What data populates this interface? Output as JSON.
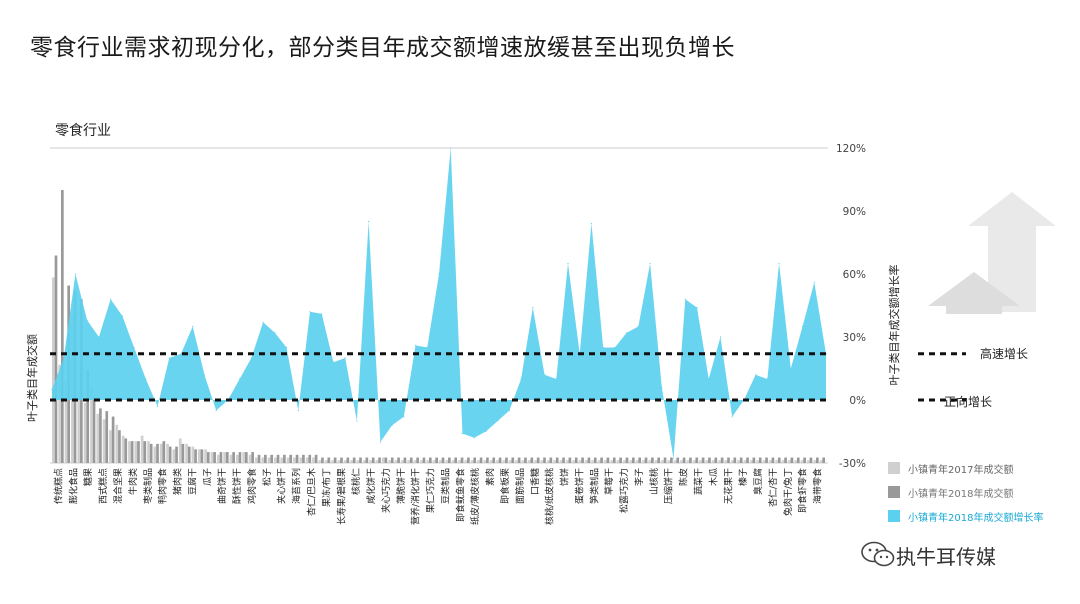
{
  "title": "零食行业需求初现分化，部分类目年成交额增速放缓甚至出现负增长",
  "watermark": "执牛耳传媒",
  "chart_data": {
    "type": "bar",
    "subtitle": "零食行业",
    "y_left_label": "叶子类目年成交额",
    "y_right_label": "叶子类目年成交额增长率",
    "y_right_ticks": [
      "120%",
      "90%",
      "60%",
      "30%",
      "0%",
      "-30%"
    ],
    "y_right_lim": [
      -30,
      120
    ],
    "reference_lines": [
      {
        "value": 22,
        "label": "高速增长"
      },
      {
        "value": 0,
        "label": "正向增长"
      }
    ],
    "legend": [
      {
        "name": "小镇青年2017年成交额",
        "color": "#d0d0d0"
      },
      {
        "name": "小镇青年2018年成交额",
        "color": "#999999"
      },
      {
        "name": "小镇青年2018年成交额增长率",
        "color": "#5cd0ef"
      }
    ],
    "colors": {
      "bar_2017": "#d0d0d0",
      "bar_2018": "#999999",
      "growth": "#5cd0ef"
    },
    "labeled_categories": [
      "传统糕点",
      "膨化食品",
      "糖果",
      "西式糕点",
      "混合坚果",
      "牛肉类",
      "枣类制品",
      "鸭肉零食",
      "猪肉类",
      "豆腐干",
      "瓜子",
      "曲奇饼干",
      "酥性饼干",
      "鸡肉零食",
      "松子",
      "夹心饼干",
      "海苔系列",
      "杏仁/巴旦木",
      "果冻/布丁",
      "长寿果/碧根果",
      "核桃仁",
      "咸化饼干",
      "夹心巧克力",
      "薄脆饼干",
      "营养/消化饼干",
      "果仁巧克力",
      "豆类制品",
      "即食鱿鱼零食",
      "纸皮/薄皮核桃",
      "素肉",
      "即食板栗",
      "面筋制品",
      "口香糖",
      "核桃/纸皮核桃",
      "饼饼",
      "蛋卷饼干",
      "笋类制品",
      "草莓干",
      "松露巧克力",
      "李子",
      "山核桃",
      "压缩饼干",
      "陈皮",
      "蔬菜干",
      "木瓜",
      "无花果干",
      "榛子",
      "臭豆腐",
      "杏仁/杏干",
      "兔肉干/兔丁",
      "即食虾零食",
      "海带零食"
    ],
    "series": [
      {
        "name": "小镇青年2017年成交额",
        "values": [
          68,
          36,
          30,
          54,
          26,
          22,
          28,
          18,
          16,
          12,
          14,
          10,
          8,
          8,
          10,
          8,
          6,
          7,
          7,
          5,
          9,
          7,
          6,
          5,
          5,
          4,
          3,
          4,
          3,
          3,
          4,
          3,
          2,
          2,
          2,
          2,
          2,
          2,
          2,
          2,
          2,
          2,
          1,
          1,
          1,
          1,
          1,
          1,
          1,
          1,
          1,
          1,
          2,
          1,
          1,
          1,
          1,
          1,
          1,
          1,
          1,
          1,
          1,
          1,
          1,
          1,
          1,
          1,
          1,
          1,
          1,
          1,
          1,
          1,
          1,
          1,
          1,
          1,
          1,
          1,
          1,
          1,
          1,
          1,
          1,
          1,
          1,
          1,
          1,
          1,
          1,
          1,
          1,
          1,
          1,
          1,
          1,
          1,
          1,
          1,
          1,
          1,
          1,
          1,
          1,
          1,
          1,
          1,
          1,
          1,
          1,
          1,
          1,
          1,
          1,
          1,
          1,
          1,
          1,
          1,
          1,
          1
        ]
      },
      {
        "name": "小镇青年2018年成交额",
        "values": [
          76,
          100,
          65,
          63,
          60,
          34,
          24,
          20,
          19,
          17,
          12,
          9,
          8,
          8,
          8,
          7,
          7,
          8,
          6,
          6,
          7,
          6,
          5,
          5,
          4,
          4,
          4,
          4,
          4,
          4,
          4,
          4,
          3,
          3,
          3,
          3,
          3,
          3,
          3,
          3,
          3,
          3,
          2,
          2,
          2,
          2,
          2,
          2,
          2,
          2,
          2,
          2,
          2,
          2,
          2,
          2,
          2,
          2,
          2,
          2,
          2,
          2,
          2,
          2,
          2,
          2,
          2,
          2,
          2,
          2,
          2,
          2,
          2,
          2,
          2,
          2,
          2,
          2,
          2,
          2,
          2,
          2,
          2,
          2,
          2,
          2,
          2,
          2,
          2,
          2,
          2,
          2,
          2,
          2,
          2,
          2,
          2,
          2,
          2,
          2,
          2,
          2,
          2,
          2,
          2,
          2,
          2,
          2,
          2,
          2,
          2,
          2,
          2,
          2,
          2,
          2,
          2,
          2,
          2,
          2,
          2,
          2
        ]
      },
      {
        "name": "小镇青年2018年成交额增长率",
        "values": [
          5,
          20,
          60,
          38,
          30,
          48,
          40,
          25,
          10,
          -3,
          20,
          22,
          35,
          12,
          -5,
          0,
          10,
          20,
          37,
          32,
          25,
          -5,
          42,
          41,
          18,
          20,
          -10,
          85,
          -20,
          -12,
          -8,
          26,
          25,
          60,
          120,
          -16,
          -18,
          -15,
          -10,
          -5,
          10,
          44,
          12,
          10,
          65,
          22,
          84,
          25,
          25,
          32,
          35,
          65,
          6,
          -28,
          48,
          44,
          10,
          30,
          -8,
          0,
          12,
          10,
          65,
          15,
          35,
          56,
          22
        ]
      }
    ],
    "growth_points_count": 67,
    "bars_count": 122
  }
}
